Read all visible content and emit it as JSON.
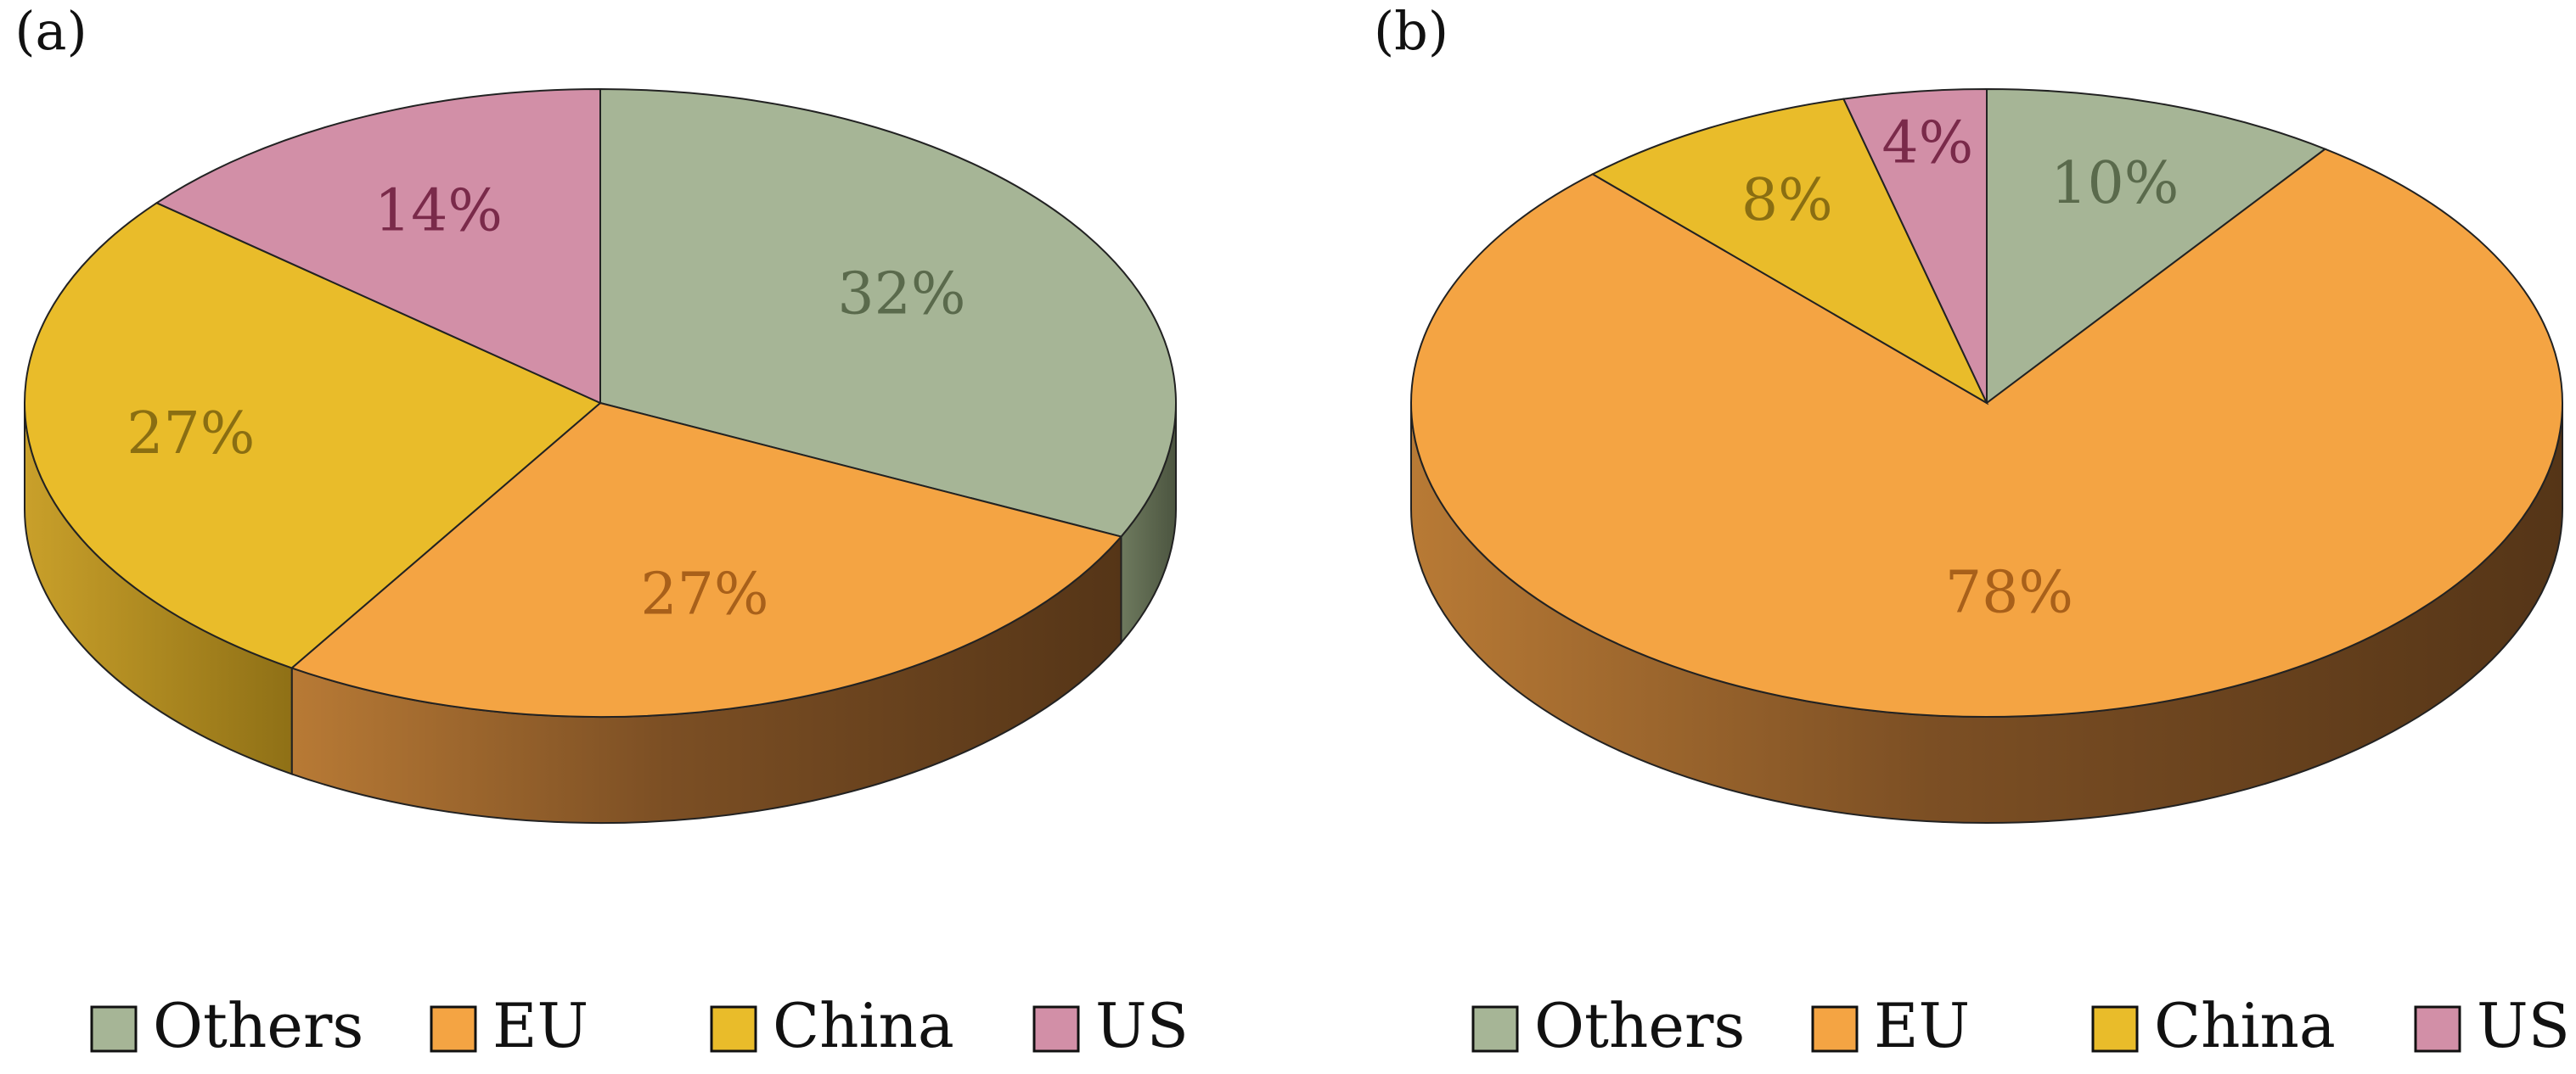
{
  "chart_data": [
    {
      "type": "pie",
      "panel_label": "(a)",
      "slices": [
        {
          "name": "Others",
          "value": 32,
          "label": "32%"
        },
        {
          "name": "EU",
          "value": 27,
          "label": "27%"
        },
        {
          "name": "China",
          "value": 27,
          "label": "27%"
        },
        {
          "name": "US",
          "value": 14,
          "label": "14%"
        }
      ],
      "legend": [
        "Others",
        "EU",
        "China",
        "US"
      ],
      "legend_position": "bottom",
      "style": "3d"
    },
    {
      "type": "pie",
      "panel_label": "(b)",
      "slices": [
        {
          "name": "Others",
          "value": 10,
          "label": "10%"
        },
        {
          "name": "EU",
          "value": 78,
          "label": "78%"
        },
        {
          "name": "China",
          "value": 8,
          "label": "8%"
        },
        {
          "name": "US",
          "value": 4,
          "label": "4%"
        }
      ],
      "legend": [
        "Others",
        "EU",
        "China",
        "US"
      ],
      "legend_position": "bottom",
      "style": "3d"
    }
  ],
  "colors": {
    "Others": "#a6b596",
    "EU": "#f4a443",
    "China": "#e9bc2a",
    "US": "#d28fa7"
  },
  "label_colors": {
    "Others": "#5a6a4c",
    "EU": "#a8601a",
    "China": "#8a6e12",
    "US": "#7a2a4a"
  }
}
